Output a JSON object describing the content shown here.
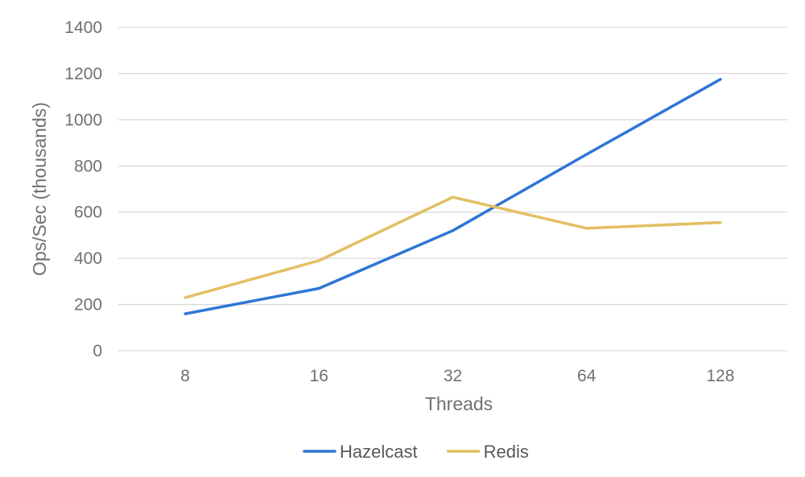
{
  "chart_data": {
    "type": "line",
    "xlabel": "Threads",
    "ylabel": "Ops/Sec (thousands)",
    "categories": [
      "8",
      "16",
      "32",
      "64",
      "128"
    ],
    "ylim": [
      0,
      1400
    ],
    "yticks": [
      0,
      200,
      400,
      600,
      800,
      1000,
      1200,
      1400
    ],
    "grid": true,
    "legend_position": "bottom",
    "series": [
      {
        "name": "Hazelcast",
        "color": "#2e75d6",
        "values": [
          160,
          270,
          520,
          850,
          1175
        ]
      },
      {
        "name": "Redis",
        "color": "#e3bf62",
        "values": [
          230,
          390,
          665,
          530,
          555
        ]
      }
    ]
  }
}
